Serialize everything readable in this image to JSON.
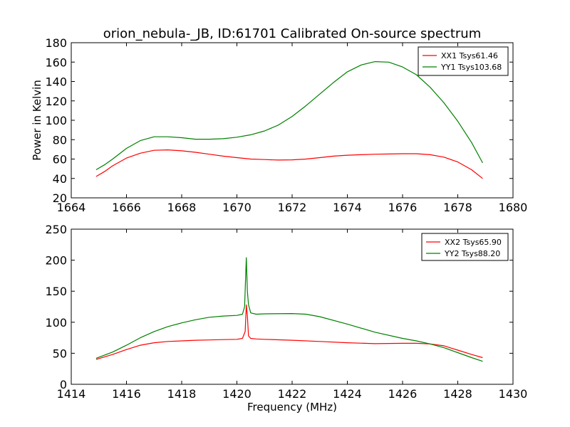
{
  "title": "orion_nebula-_JB, ID:61701 Calibrated On-source spectrum",
  "ylabel": "Power in Kelvin",
  "xlabel": "Frequency (MHz)",
  "colors": {
    "red": "#ff0000",
    "green": "#008000"
  },
  "chart_data": [
    {
      "type": "line",
      "xlim": [
        1664,
        1680
      ],
      "ylim": [
        20,
        180
      ],
      "xticks": [
        1664,
        1666,
        1668,
        1670,
        1672,
        1674,
        1676,
        1678,
        1680
      ],
      "yticks": [
        20,
        40,
        60,
        80,
        100,
        120,
        140,
        160,
        180
      ],
      "legend_position": "top-right",
      "series": [
        {
          "name": "XX1 Tsys61.46",
          "color": "#ff0000",
          "x": [
            1664.9,
            1665.2,
            1665.5,
            1666,
            1666.5,
            1667,
            1667.5,
            1668,
            1668.5,
            1669,
            1669.5,
            1670,
            1670.5,
            1671,
            1671.5,
            1672,
            1672.5,
            1673,
            1673.5,
            1674,
            1674.5,
            1675,
            1675.5,
            1676,
            1676.5,
            1677,
            1677.5,
            1678,
            1678.5,
            1678.9
          ],
          "y": [
            42,
            47,
            53,
            61,
            66,
            69,
            69.5,
            68.5,
            67,
            65,
            63,
            61.5,
            60,
            59.5,
            59,
            59.2,
            60,
            61.5,
            63,
            64,
            64.5,
            65,
            65.2,
            65.5,
            65.5,
            64.5,
            62,
            57,
            49,
            40
          ]
        },
        {
          "name": "YY1 Tsys103.68",
          "color": "#008000",
          "x": [
            1664.9,
            1665.2,
            1665.5,
            1666,
            1666.5,
            1667,
            1667.5,
            1668,
            1668.5,
            1669,
            1669.5,
            1670,
            1670.5,
            1671,
            1671.5,
            1672,
            1672.5,
            1673,
            1673.5,
            1674,
            1674.5,
            1675,
            1675.5,
            1676,
            1676.5,
            1677,
            1677.5,
            1678,
            1678.5,
            1678.9
          ],
          "y": [
            49,
            54,
            60,
            71,
            79,
            83,
            83,
            82,
            80.5,
            80.5,
            81,
            82.5,
            85,
            89,
            95,
            104,
            115,
            127,
            139,
            150,
            157,
            160.5,
            160,
            155,
            147,
            134,
            118,
            99,
            77,
            56
          ]
        }
      ]
    },
    {
      "type": "line",
      "xlim": [
        1414,
        1430
      ],
      "ylim": [
        0,
        250
      ],
      "xticks": [
        1414,
        1416,
        1418,
        1420,
        1422,
        1424,
        1426,
        1428,
        1430
      ],
      "yticks": [
        0,
        50,
        100,
        150,
        200,
        250
      ],
      "legend_position": "top-right",
      "series": [
        {
          "name": "XX2 Tsys65.90",
          "color": "#ff0000",
          "x": [
            1414.9,
            1415.5,
            1416,
            1416.5,
            1417,
            1417.5,
            1418,
            1418.5,
            1419,
            1419.5,
            1420,
            1420.2,
            1420.3,
            1420.34,
            1420.38,
            1420.42,
            1420.5,
            1420.7,
            1421,
            1422,
            1423,
            1424,
            1425,
            1426,
            1426.5,
            1427,
            1427.5,
            1428,
            1428.5,
            1428.9
          ],
          "y": [
            40,
            48,
            56,
            63,
            67,
            69,
            70,
            71,
            71.5,
            72,
            72.5,
            74,
            85,
            128,
            110,
            78,
            74,
            73,
            72.5,
            71,
            69,
            67,
            65.5,
            66,
            66,
            65,
            62,
            55,
            48,
            43
          ]
        },
        {
          "name": "YY2 Tsys88.20",
          "color": "#008000",
          "x": [
            1414.9,
            1415.5,
            1416,
            1416.5,
            1417,
            1417.5,
            1418,
            1418.5,
            1419,
            1419.5,
            1420,
            1420.2,
            1420.28,
            1420.34,
            1420.38,
            1420.42,
            1420.5,
            1420.7,
            1421,
            1422,
            1422.5,
            1423,
            1424,
            1425,
            1426,
            1426.5,
            1427,
            1427.5,
            1428,
            1428.5,
            1428.9
          ],
          "y": [
            42,
            52,
            63,
            75,
            85,
            93,
            99,
            104,
            108,
            110,
            111,
            113,
            125,
            204,
            150,
            128,
            115,
            113,
            113.5,
            114,
            113,
            109,
            97,
            84,
            74,
            70,
            65,
            59,
            51,
            43,
            37
          ]
        }
      ]
    }
  ]
}
